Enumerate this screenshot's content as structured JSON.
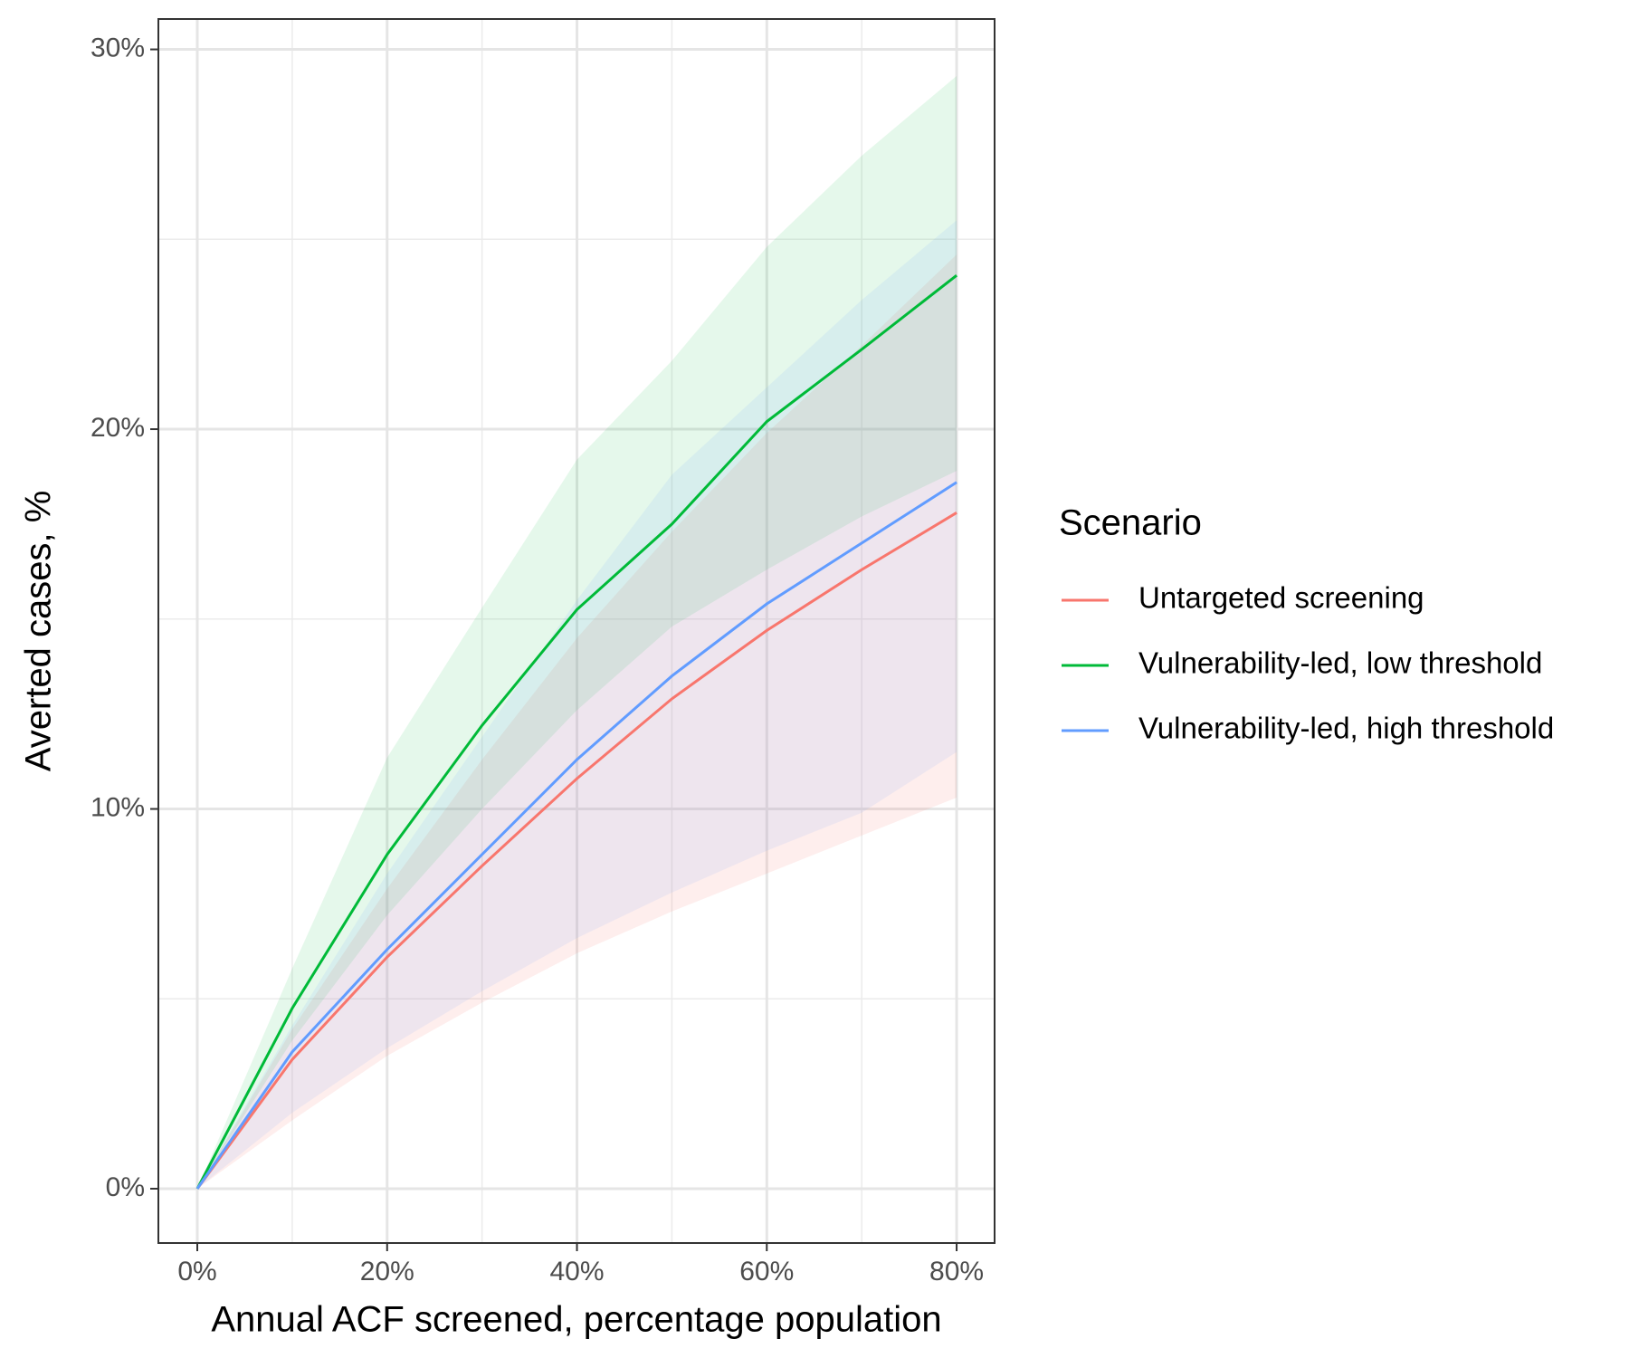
{
  "chart_data": {
    "type": "line",
    "x_label": "Annual ACF screened, percentage population",
    "y_label": "Averted cases, %",
    "legend_title": "Scenario",
    "legend_position": "right",
    "grid": true,
    "x": [
      0,
      10,
      20,
      30,
      40,
      50,
      60,
      70,
      80
    ],
    "series": [
      {
        "name": "Untargeted screening",
        "color": "#f8766d",
        "band_opacity": 0.12,
        "values": [
          0,
          3.4,
          6.1,
          8.5,
          10.8,
          12.9,
          14.7,
          16.3,
          17.8
        ],
        "lower": [
          0,
          1.8,
          3.5,
          4.9,
          6.2,
          7.3,
          8.3,
          9.3,
          10.3
        ],
        "upper": [
          0,
          4.2,
          7.9,
          11.3,
          14.5,
          17.3,
          19.9,
          22.2,
          24.6
        ]
      },
      {
        "name": "Vulnerability-led, low threshold",
        "color": "#00ba38",
        "band_opacity": 0.1,
        "values": [
          0,
          4.75,
          8.8,
          12.2,
          15.25,
          17.5,
          20.2,
          22.1,
          24.05
        ],
        "lower": [
          0,
          3.9,
          7.2,
          10.0,
          12.6,
          14.8,
          16.3,
          17.7,
          18.9
        ],
        "upper": [
          0,
          5.8,
          11.35,
          15.3,
          19.2,
          21.8,
          24.8,
          27.2,
          29.3
        ]
      },
      {
        "name": "Vulnerability-led, high threshold",
        "color": "#619cff",
        "band_opacity": 0.1,
        "values": [
          0,
          3.6,
          6.3,
          8.8,
          11.3,
          13.5,
          15.4,
          17.0,
          18.6
        ],
        "lower": [
          0,
          2.0,
          3.7,
          5.2,
          6.6,
          7.8,
          8.9,
          9.9,
          11.5
        ],
        "upper": [
          0,
          4.3,
          8.3,
          11.9,
          15.5,
          18.8,
          21.1,
          23.4,
          25.5
        ]
      }
    ],
    "xlim": [
      -4.1,
      84.0
    ],
    "ylim": [
      -1.43,
      30.8
    ],
    "xticks": [
      {
        "value": 0,
        "label": "0%"
      },
      {
        "value": 20,
        "label": "20%"
      },
      {
        "value": 40,
        "label": "40%"
      },
      {
        "value": 60,
        "label": "60%"
      },
      {
        "value": 80,
        "label": "80%"
      }
    ],
    "yticks": [
      {
        "value": 0,
        "label": "0%"
      },
      {
        "value": 10,
        "label": "10%"
      },
      {
        "value": 20,
        "label": "20%"
      },
      {
        "value": 30,
        "label": "30%"
      }
    ],
    "x_minor_ticks": [
      10,
      30,
      50,
      70
    ],
    "y_minor_ticks": [
      5,
      15,
      25
    ]
  }
}
